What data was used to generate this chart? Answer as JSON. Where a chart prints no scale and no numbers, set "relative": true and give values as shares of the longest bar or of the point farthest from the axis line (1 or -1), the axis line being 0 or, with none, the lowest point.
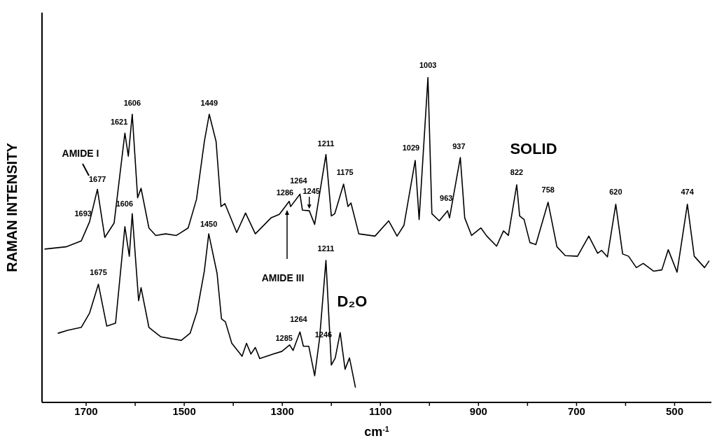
{
  "chart_data": {
    "type": "line",
    "relative": true,
    "xlabel": "cm$^{-1}$",
    "ylabel": "RAMAN INTENSITY",
    "xlim": [
      1790,
      425
    ],
    "xticks": [
      1700,
      {
        "value": 1600,
        "label": null
      },
      1500,
      {
        "value": 1400,
        "label": null
      },
      1300,
      {
        "value": 1200,
        "label": null
      },
      1100,
      {
        "value": 1000,
        "label": null
      },
      900,
      {
        "value": 800,
        "label": null
      },
      700,
      {
        "value": 600,
        "label": null
      },
      500
    ],
    "series": [
      {
        "name": "SOLID",
        "color": "#000000",
        "x": [
          1784,
          1741,
          1710,
          1693,
          1677,
          1662,
          1643,
          1621,
          1614,
          1606,
          1595,
          1588,
          1572,
          1558,
          1538,
          1516,
          1492,
          1475,
          1459,
          1449,
          1435,
          1425,
          1417,
          1393,
          1375,
          1355,
          1323,
          1306,
          1286,
          1283,
          1264,
          1259,
          1245,
          1234,
          1211,
          1200,
          1193,
          1175,
          1166,
          1160,
          1144,
          1111,
          1083,
          1066,
          1052,
          1029,
          1021,
          1003,
          995,
          980,
          963,
          959,
          937,
          928,
          914,
          895,
          883,
          863,
          849,
          839,
          822,
          816,
          807,
          795,
          783,
          758,
          740,
          723,
          698,
          675,
          657,
          649,
          637,
          620,
          606,
          594,
          578,
          564,
          543,
          526,
          513,
          495,
          474,
          460,
          439,
          430
        ],
        "values": [
          0.472,
          0.479,
          0.497,
          0.556,
          0.656,
          0.508,
          0.552,
          0.829,
          0.758,
          0.887,
          0.63,
          0.659,
          0.537,
          0.514,
          0.519,
          0.514,
          0.537,
          0.625,
          0.803,
          0.887,
          0.803,
          0.603,
          0.612,
          0.523,
          0.583,
          0.519,
          0.568,
          0.579,
          0.619,
          0.603,
          0.641,
          0.592,
          0.59,
          0.548,
          0.763,
          0.574,
          0.581,
          0.672,
          0.603,
          0.614,
          0.519,
          0.512,
          0.559,
          0.512,
          0.545,
          0.745,
          0.563,
          1.0,
          0.581,
          0.559,
          0.59,
          0.568,
          0.754,
          0.568,
          0.514,
          0.537,
          0.512,
          0.481,
          0.528,
          0.514,
          0.67,
          0.574,
          0.563,
          0.492,
          0.486,
          0.616,
          0.479,
          0.452,
          0.45,
          0.512,
          0.459,
          0.468,
          0.448,
          0.61,
          0.457,
          0.45,
          0.415,
          0.428,
          0.404,
          0.408,
          0.47,
          0.401,
          0.61,
          0.45,
          0.415,
          0.435
        ]
      },
      {
        "name": "D₂O",
        "color": "#000000",
        "x": [
          1757,
          1738,
          1710,
          1693,
          1675,
          1658,
          1640,
          1621,
          1612,
          1606,
          1593,
          1588,
          1572,
          1548,
          1506,
          1488,
          1474,
          1459,
          1450,
          1433,
          1424,
          1416,
          1403,
          1382,
          1373,
          1364,
          1355,
          1346,
          1318,
          1301,
          1285,
          1278,
          1264,
          1257,
          1246,
          1234,
          1224,
          1211,
          1200,
          1192,
          1182,
          1172,
          1163,
          1151
        ],
        "values": [
          0.213,
          0.222,
          0.231,
          0.275,
          0.364,
          0.235,
          0.244,
          0.541,
          0.45,
          0.581,
          0.313,
          0.353,
          0.231,
          0.202,
          0.191,
          0.213,
          0.279,
          0.404,
          0.519,
          0.397,
          0.257,
          0.248,
          0.182,
          0.142,
          0.182,
          0.149,
          0.169,
          0.135,
          0.149,
          0.157,
          0.177,
          0.16,
          0.217,
          0.173,
          0.173,
          0.082,
          0.197,
          0.437,
          0.115,
          0.137,
          0.215,
          0.102,
          0.137,
          0.047
        ]
      }
    ],
    "annotations": [
      {
        "text": "1693",
        "x": 1693,
        "y": 0.556
      },
      {
        "text": "1677",
        "x": 1677,
        "y": 0.656
      },
      {
        "text": "1621",
        "x": 1621,
        "y": 0.829
      },
      {
        "text": "1606",
        "x": 1606,
        "y": 0.887
      },
      {
        "text": "1449",
        "x": 1449,
        "y": 0.887
      },
      {
        "text": "1286",
        "x": 1286,
        "y": 0.619
      },
      {
        "text": "1264",
        "x": 1264,
        "y": 0.641
      },
      {
        "text": "1245",
        "x": 1245,
        "y": 0.59
      },
      {
        "text": "1211",
        "x": 1211,
        "y": 0.763
      },
      {
        "text": "1175",
        "x": 1175,
        "y": 0.672
      },
      {
        "text": "1029",
        "x": 1029,
        "y": 0.745
      },
      {
        "text": "1003",
        "x": 1003,
        "y": 1.0
      },
      {
        "text": "963",
        "x": 963,
        "y": 0.59
      },
      {
        "text": "937",
        "x": 937,
        "y": 0.754
      },
      {
        "text": "822",
        "x": 822,
        "y": 0.67
      },
      {
        "text": "758",
        "x": 758,
        "y": 0.616
      },
      {
        "text": "620",
        "x": 620,
        "y": 0.61
      },
      {
        "text": "474",
        "x": 474,
        "y": 0.61
      },
      {
        "text": "1675",
        "x": 1675,
        "y": 0.364
      },
      {
        "text": "1606",
        "x": 1606,
        "y": 0.581
      },
      {
        "text": "1450",
        "x": 1450,
        "y": 0.519
      },
      {
        "text": "1285",
        "x": 1285,
        "y": 0.177
      },
      {
        "text": "1264",
        "x": 1264,
        "y": 0.217
      },
      {
        "text": "1246",
        "x": 1246,
        "y": 0.173
      },
      {
        "text": "1211",
        "x": 1211,
        "y": 0.437
      },
      "AMIDE I",
      "AMIDE III"
    ]
  }
}
